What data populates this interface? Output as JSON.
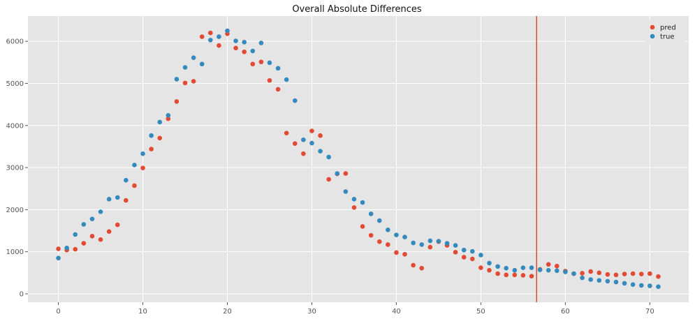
{
  "chart_data": {
    "type": "scatter",
    "title": "Overall Absolute Differences",
    "xlabel": "",
    "ylabel": "",
    "xlim": [
      -3.6,
      74.6
    ],
    "ylim": [
      -200,
      6600
    ],
    "x_ticks": [
      0,
      10,
      20,
      30,
      40,
      50,
      60,
      70
    ],
    "y_ticks": [
      0,
      1000,
      2000,
      3000,
      4000,
      5000,
      6000
    ],
    "grid": true,
    "legend_position": "top-right",
    "vertical_line": {
      "x": 56.6,
      "color": "#E24A33"
    },
    "series": [
      {
        "name": "pred",
        "color": "#E24A33",
        "x": [
          0,
          1,
          2,
          3,
          4,
          5,
          6,
          7,
          8,
          9,
          10,
          11,
          12,
          13,
          14,
          15,
          16,
          17,
          18,
          19,
          20,
          21,
          22,
          23,
          24,
          25,
          26,
          27,
          28,
          29,
          30,
          31,
          32,
          33,
          34,
          35,
          36,
          37,
          38,
          39,
          40,
          41,
          42,
          43,
          44,
          45,
          46,
          47,
          48,
          49,
          50,
          51,
          52,
          53,
          54,
          55,
          56,
          57,
          58,
          59,
          60,
          61,
          62,
          63,
          64,
          65,
          66,
          67,
          68,
          69,
          70,
          71
        ],
        "y": [
          1070,
          1040,
          1060,
          1200,
          1370,
          1290,
          1480,
          1640,
          2220,
          2570,
          2990,
          3440,
          3700,
          4160,
          4570,
          5010,
          5050,
          6110,
          6200,
          5900,
          6180,
          5840,
          5750,
          5460,
          5510,
          5070,
          4860,
          3820,
          3570,
          3330,
          3870,
          3760,
          2720,
          2850,
          2860,
          2050,
          1600,
          1390,
          1240,
          1170,
          980,
          940,
          680,
          610,
          1110,
          1240,
          1150,
          990,
          870,
          830,
          620,
          560,
          480,
          450,
          450,
          440,
          420,
          580,
          700,
          660,
          540,
          480,
          490,
          530,
          500,
          460,
          450,
          470,
          480,
          470,
          480,
          410
        ]
      },
      {
        "name": "true",
        "color": "#348ABD",
        "x": [
          0,
          1,
          2,
          3,
          4,
          5,
          6,
          7,
          8,
          9,
          10,
          11,
          12,
          13,
          14,
          15,
          16,
          17,
          18,
          19,
          20,
          21,
          22,
          23,
          24,
          25,
          26,
          27,
          28,
          29,
          30,
          31,
          32,
          33,
          34,
          35,
          36,
          37,
          38,
          39,
          40,
          41,
          42,
          43,
          44,
          45,
          46,
          47,
          48,
          49,
          50,
          51,
          52,
          53,
          54,
          55,
          56,
          57,
          58,
          59,
          60,
          61,
          62,
          63,
          64,
          65,
          66,
          67,
          68,
          69,
          70,
          71
        ],
        "y": [
          850,
          1090,
          1410,
          1650,
          1780,
          1950,
          2250,
          2290,
          2700,
          3060,
          3330,
          3760,
          4080,
          4240,
          5100,
          5380,
          5610,
          5460,
          6030,
          6110,
          6250,
          6010,
          5980,
          5770,
          5960,
          5490,
          5360,
          5090,
          4590,
          3660,
          3580,
          3390,
          3250,
          2860,
          2430,
          2250,
          2170,
          1900,
          1740,
          1520,
          1400,
          1350,
          1210,
          1170,
          1260,
          1250,
          1200,
          1150,
          1040,
          1010,
          920,
          730,
          650,
          610,
          560,
          620,
          620,
          570,
          560,
          550,
          520,
          480,
          380,
          340,
          320,
          300,
          280,
          250,
          220,
          200,
          190,
          170
        ]
      }
    ]
  }
}
